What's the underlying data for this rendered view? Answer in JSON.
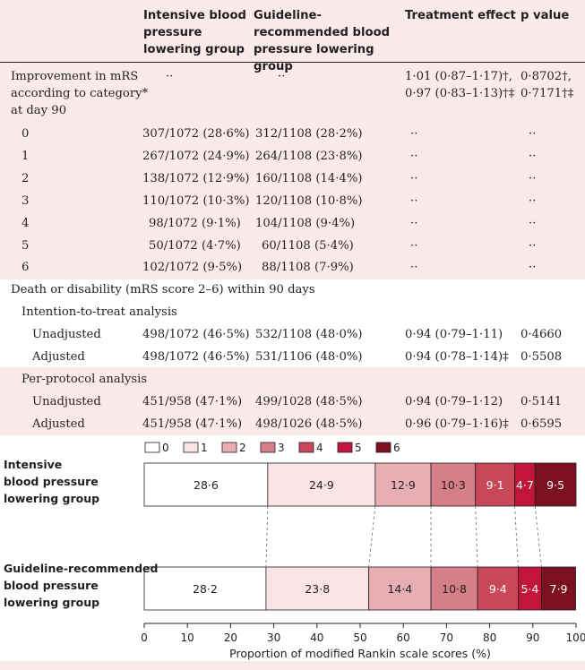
{
  "table": {
    "headers": [
      "Intensive blood pressure lowering group",
      "Guideline-recommended blood pressure lowering group",
      "Treatment effect",
      "p value"
    ],
    "improvement": {
      "label": [
        "Improvement in mRS",
        "according to category*",
        "at day 90"
      ],
      "col1": "··",
      "col2": "··",
      "effect": [
        "1·01 (0·87–1·17)†,",
        "0·97 (0·83–1·13)†‡"
      ],
      "p": [
        "0·8702†,",
        "0·7171†‡"
      ]
    },
    "mrs_rows": [
      {
        "cat": "0",
        "col1": "307/1072 (28·6%)",
        "col2": "312/1108 (28·2%)",
        "effect": "··",
        "p": "··"
      },
      {
        "cat": "1",
        "col1": "267/1072 (24·9%)",
        "col2": "264/1108 (23·8%)",
        "effect": "··",
        "p": "··"
      },
      {
        "cat": "2",
        "col1": "138/1072 (12·9%)",
        "col2": "160/1108 (14·4%)",
        "effect": "··",
        "p": "··"
      },
      {
        "cat": "3",
        "col1": "110/1072 (10·3%)",
        "col2": "120/1108 (10·8%)",
        "effect": "··",
        "p": "··"
      },
      {
        "cat": "4",
        "col1": "98/1072 (9·1%)",
        "col2": "104/1108 (9·4%)",
        "effect": "··",
        "p": "··"
      },
      {
        "cat": "5",
        "col1": "50/1072 (4·7%)",
        "col2": "60/1108 (5·4%)",
        "effect": "··",
        "p": "··"
      },
      {
        "cat": "6",
        "col1": "102/1072 (9·5%)",
        "col2": "88/1108 (7·9%)",
        "effect": "··",
        "p": "··"
      }
    ],
    "death_title": "Death or disability (mRS score 2–6) within 90 days",
    "itt_title": "Intention-to-treat analysis",
    "itt": [
      {
        "label": "Unadjusted",
        "col1": "498/1072 (46·5%)",
        "col2": "532/1108 (48·0%)",
        "effect": "0·94 (0·79–1·11)",
        "p": "0·4660"
      },
      {
        "label": "Adjusted",
        "col1": "498/1072 (46·5%)",
        "col2": "531/1106 (48·0%)",
        "effect": "0·94 (0·78–1·14)‡",
        "p": "0·5508"
      }
    ],
    "pp_title": "Per-protocol analysis",
    "pp": [
      {
        "label": "Unadjusted",
        "col1": "451/958 (47·1%)",
        "col2": "499/1028 (48·5%)",
        "effect": "0·94 (0·79–1·12)",
        "p": "0·5141"
      },
      {
        "label": "Adjusted",
        "col1": "451/958 (47·1%)",
        "col2": "498/1026 (48·5%)",
        "effect": "0·96 (0·79–1·16)‡",
        "p": "0·6595"
      }
    ]
  },
  "chart_data": {
    "type": "bar",
    "orientation": "horizontal-stacked",
    "legend": [
      "0",
      "1",
      "2",
      "3",
      "4",
      "5",
      "6"
    ],
    "colors": [
      "#ffffff",
      "#fbe4e6",
      "#e8aeb3",
      "#d77f88",
      "#c94858",
      "#c1163a",
      "#7a1020"
    ],
    "label_colors": [
      "#231f20",
      "#231f20",
      "#231f20",
      "#231f20",
      "#ffffff",
      "#ffffff",
      "#ffffff"
    ],
    "series": [
      {
        "name": "Intensive blood pressure lowering group",
        "label_lines": [
          "Intensive",
          "blood pressure",
          "lowering group"
        ],
        "values": [
          28.6,
          24.9,
          12.9,
          10.3,
          9.1,
          4.7,
          9.5
        ],
        "labels": [
          "28·6",
          "24·9",
          "12·9",
          "10·3",
          "9·1",
          "4·7",
          "9·5"
        ]
      },
      {
        "name": "Guideline-recommended blood pressure lowering group",
        "label_lines": [
          "Guideline-recommended",
          "blood pressure",
          "lowering group"
        ],
        "values": [
          28.2,
          23.8,
          14.4,
          10.8,
          9.4,
          5.4,
          7.9
        ],
        "labels": [
          "28·2",
          "23·8",
          "14·4",
          "10·8",
          "9·4",
          "5·4",
          "7·9"
        ]
      }
    ],
    "xticks": [
      "0",
      "10",
      "20",
      "30",
      "40",
      "50",
      "60",
      "70",
      "80",
      "90",
      "100"
    ],
    "xlim": [
      0,
      100
    ],
    "xlabel": "Proportion of modified Rankin scale scores (%)"
  }
}
